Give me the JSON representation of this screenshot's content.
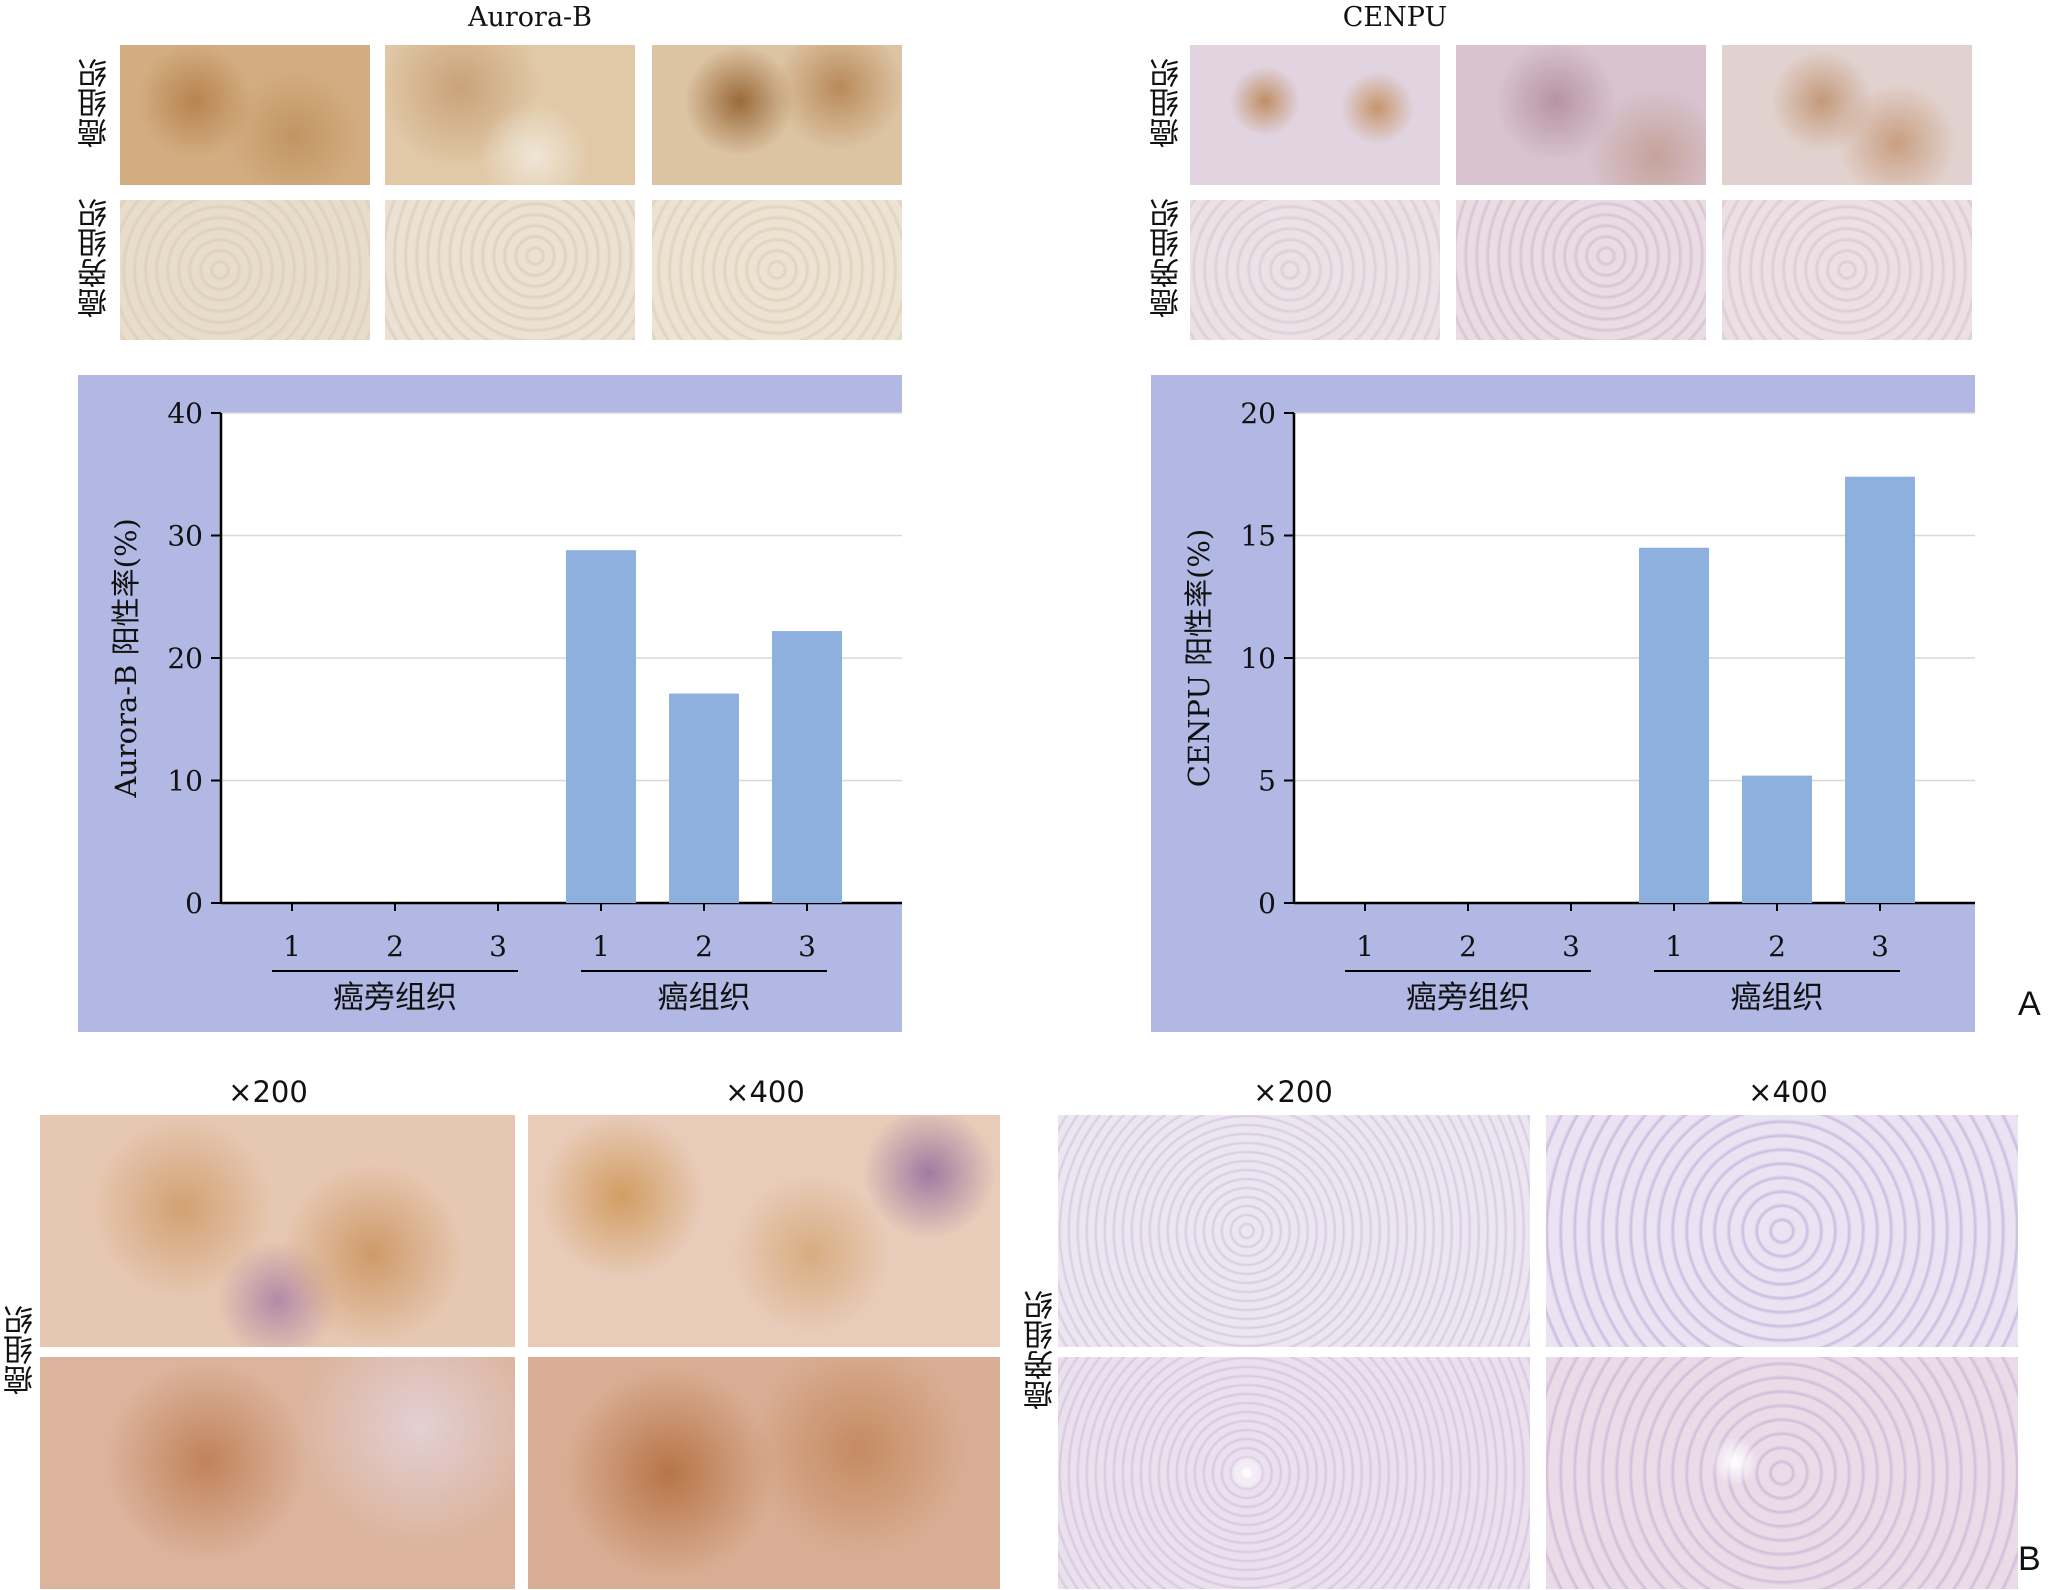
{
  "panel_a": {
    "letter": "A",
    "left": {
      "title": "Aurora-B",
      "row_labels": {
        "tumor": "癌组织",
        "adjacent": "癌旁组织"
      }
    },
    "right": {
      "title": "CENPU",
      "row_labels": {
        "tumor": "癌组织",
        "adjacent": "癌旁组织"
      }
    }
  },
  "panel_b": {
    "letter": "B",
    "left": {
      "mag_low": "×200",
      "mag_high": "×400",
      "row_label": "癌组织"
    },
    "right": {
      "mag_low": "×200",
      "mag_high": "×400",
      "row_label": "癌旁组织"
    }
  },
  "colors": {
    "bar": "#8db0df",
    "chart_panel": "#b0b8e3",
    "stain_brown": "#c9935a",
    "stain_purple": "#a58fc7"
  },
  "chart_data": [
    {
      "type": "bar",
      "title": "",
      "ylabel": "Aurora-B 阳性率(%)",
      "xlabel": "",
      "categories": [
        "1",
        "2",
        "3",
        "1",
        "2",
        "3"
      ],
      "groups": [
        "癌旁组织",
        "癌组织"
      ],
      "values": [
        0,
        0,
        0,
        28.8,
        17.1,
        22.2
      ],
      "ylim": [
        0,
        40
      ],
      "yticks": [
        0,
        10,
        20,
        30,
        40
      ],
      "grid": true
    },
    {
      "type": "bar",
      "title": "",
      "ylabel": "CENPU 阳性率(%)",
      "xlabel": "",
      "categories": [
        "1",
        "2",
        "3",
        "1",
        "2",
        "3"
      ],
      "groups": [
        "癌旁组织",
        "癌组织"
      ],
      "values": [
        0,
        0,
        0,
        14.5,
        5.2,
        17.4
      ],
      "ylim": [
        0,
        20
      ],
      "yticks": [
        0,
        5,
        10,
        15,
        20
      ],
      "grid": true
    }
  ]
}
